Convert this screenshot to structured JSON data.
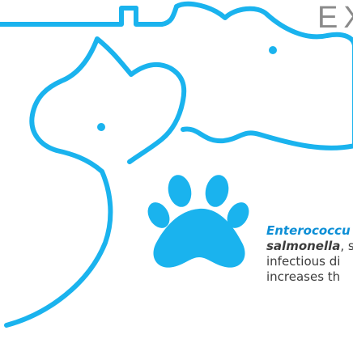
{
  "colors": {
    "outline": "#1ab3ee",
    "paw": "#1ab3ee",
    "accent_text": "#0d8fd6",
    "body_text": "#3c3c3c",
    "heading": "#8a8a8a"
  },
  "icons": [
    "dog-outline-icon",
    "cat-outline-icon",
    "paw-print-icon"
  ],
  "heading": "EX",
  "paragraph": {
    "line1_term": "Enterococcu",
    "line2_term": "salmonella",
    "line2_rest": ", s",
    "line3": "infectious di",
    "line4": "increases th"
  }
}
